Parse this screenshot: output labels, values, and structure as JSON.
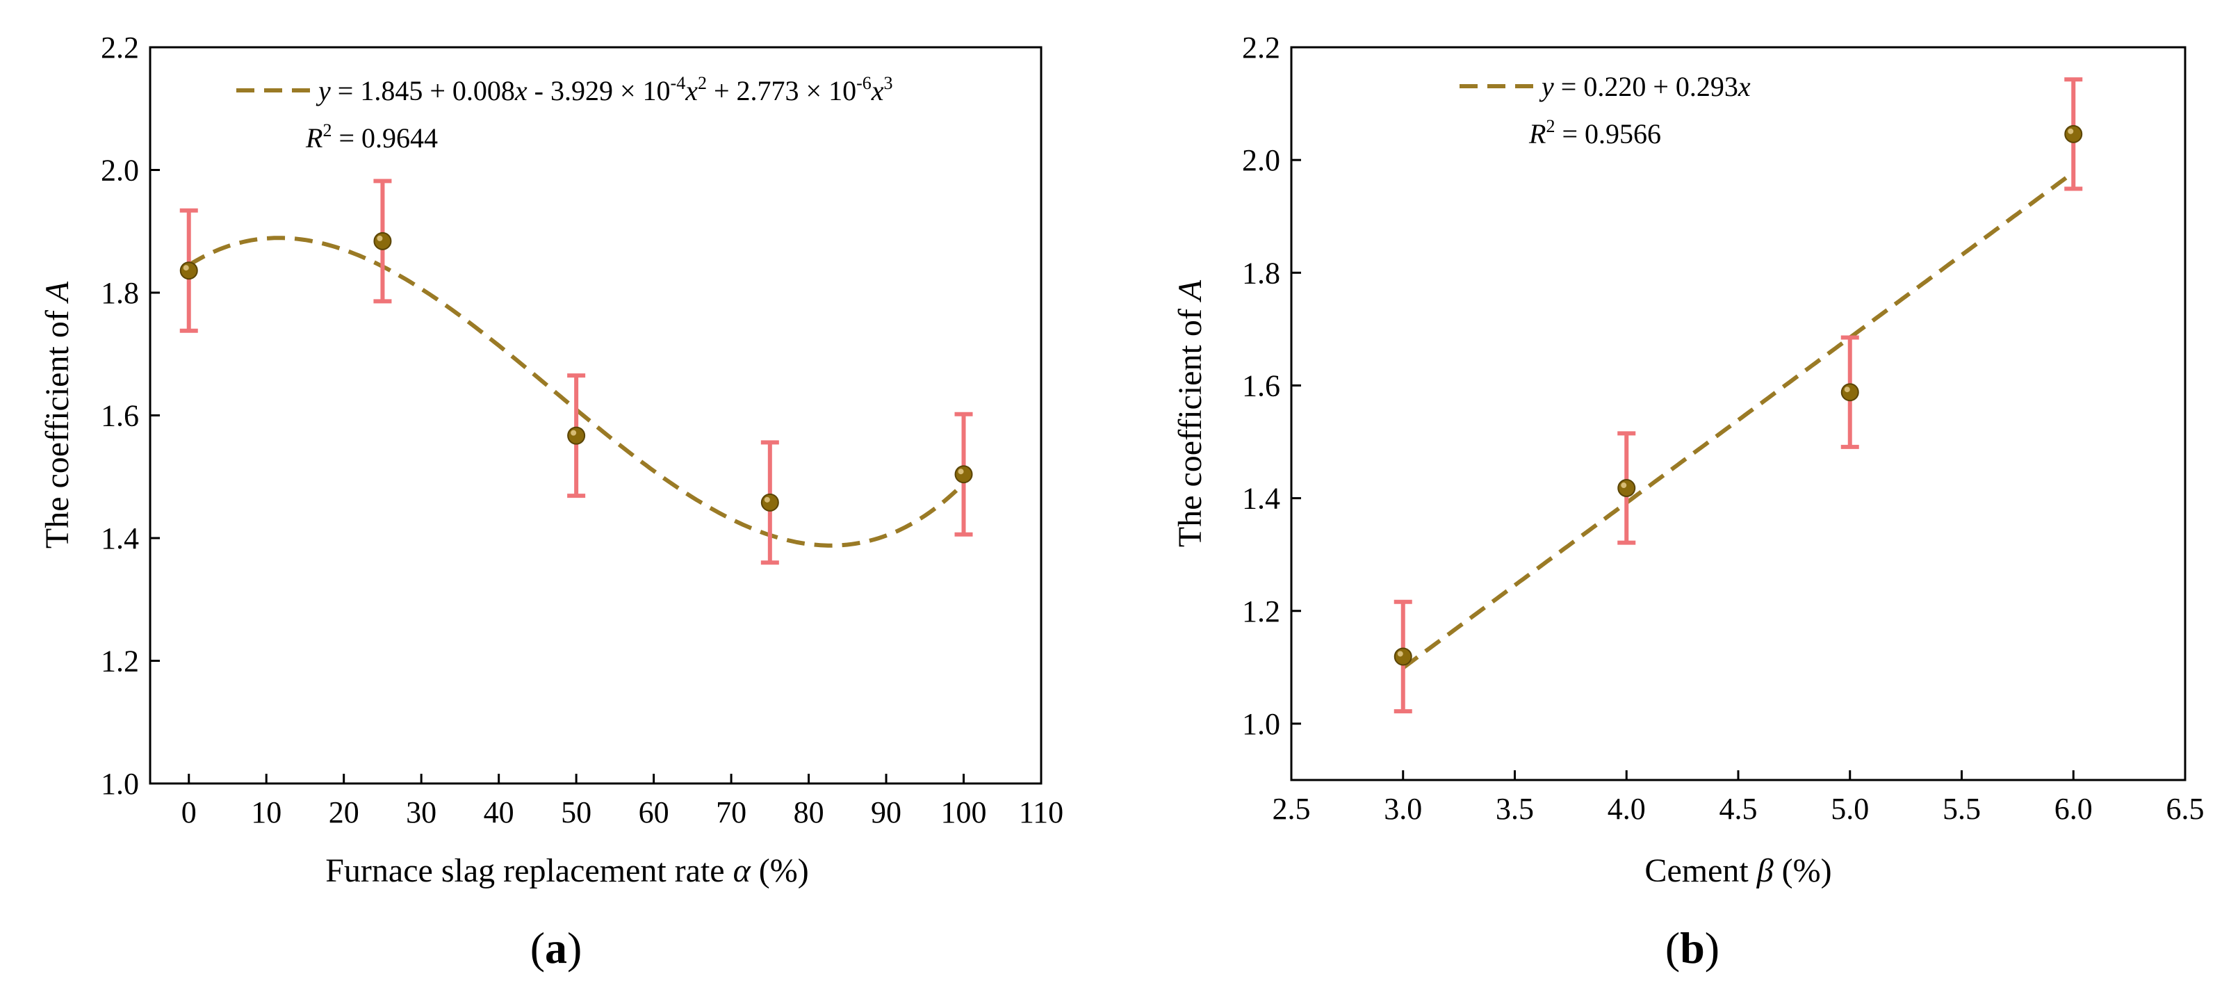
{
  "colors": {
    "errorbar": "#EF7478",
    "fit": "#9A7A25",
    "point": "#8A6A0C",
    "axis": "#000000"
  },
  "chart_data": [
    {
      "type": "scatter",
      "panel_label": "a",
      "xlabel": "Furnace slag replacement rate",
      "xlabel_symbol": "α",
      "xlabel_unit": " (%)",
      "ylabel": "The coefficient of ",
      "ylabel_symbol": "A",
      "xlim": [
        -5,
        110
      ],
      "ylim": [
        1.0,
        2.2
      ],
      "xticks": [
        0,
        10,
        20,
        30,
        40,
        50,
        60,
        70,
        80,
        90,
        100,
        110
      ],
      "yticks": [
        1.0,
        1.2,
        1.4,
        1.6,
        1.8,
        2.0,
        2.2
      ],
      "x_decimals": 0,
      "y_decimals": 1,
      "points": {
        "x": [
          0,
          25,
          50,
          75,
          100
        ],
        "y": [
          1.836,
          1.884,
          1.567,
          1.458,
          1.504
        ],
        "err": [
          0.098,
          0.098,
          0.098,
          0.098,
          0.098
        ]
      },
      "fit": {
        "type": "cubic",
        "coeffs": [
          1.845,
          0.008,
          -0.0003929,
          2.773e-06
        ],
        "x_range": [
          0,
          100
        ]
      },
      "legend": {
        "y": "y",
        "eq_text": " = 1.845 + 0.008",
        "x1": "x",
        "mid": " - 3.929 × 10",
        "exp1": "-4",
        "x2": "x",
        "sq": "2",
        "plus": " + 2.773 × 10",
        "exp2": "-6",
        "x3": "x",
        "cube": "3"
      },
      "r2": {
        "r": "R",
        "sup": "2",
        "value": " = 0.9644"
      }
    },
    {
      "type": "scatter",
      "panel_label": "b",
      "xlabel": "Cement",
      "xlabel_symbol": "β",
      "xlabel_unit": " (%)",
      "ylabel": "The coefficient of ",
      "ylabel_symbol": "A",
      "xlim": [
        2.5,
        6.5
      ],
      "ylim": [
        0.9,
        2.2
      ],
      "xticks": [
        2.5,
        3.0,
        3.5,
        4.0,
        4.5,
        5.0,
        5.5,
        6.0,
        6.5
      ],
      "yticks": [
        1.0,
        1.2,
        1.4,
        1.6,
        1.8,
        2.0,
        2.2
      ],
      "x_decimals": 1,
      "y_decimals": 1,
      "points": {
        "x": [
          3.0,
          4.0,
          5.0,
          6.0
        ],
        "y": [
          1.119,
          1.418,
          1.588,
          2.046
        ],
        "err": [
          0.097,
          0.097,
          0.097,
          0.097
        ]
      },
      "fit": {
        "type": "linear",
        "coeffs": [
          0.22,
          0.293
        ],
        "x_range": [
          3.0,
          6.0
        ]
      },
      "legend": {
        "y": "y",
        "eq_text": " = 0.220 + 0.293",
        "x1": "x"
      },
      "r2": {
        "r": "R",
        "sup": "2",
        "value": " = 0.9566"
      }
    }
  ]
}
